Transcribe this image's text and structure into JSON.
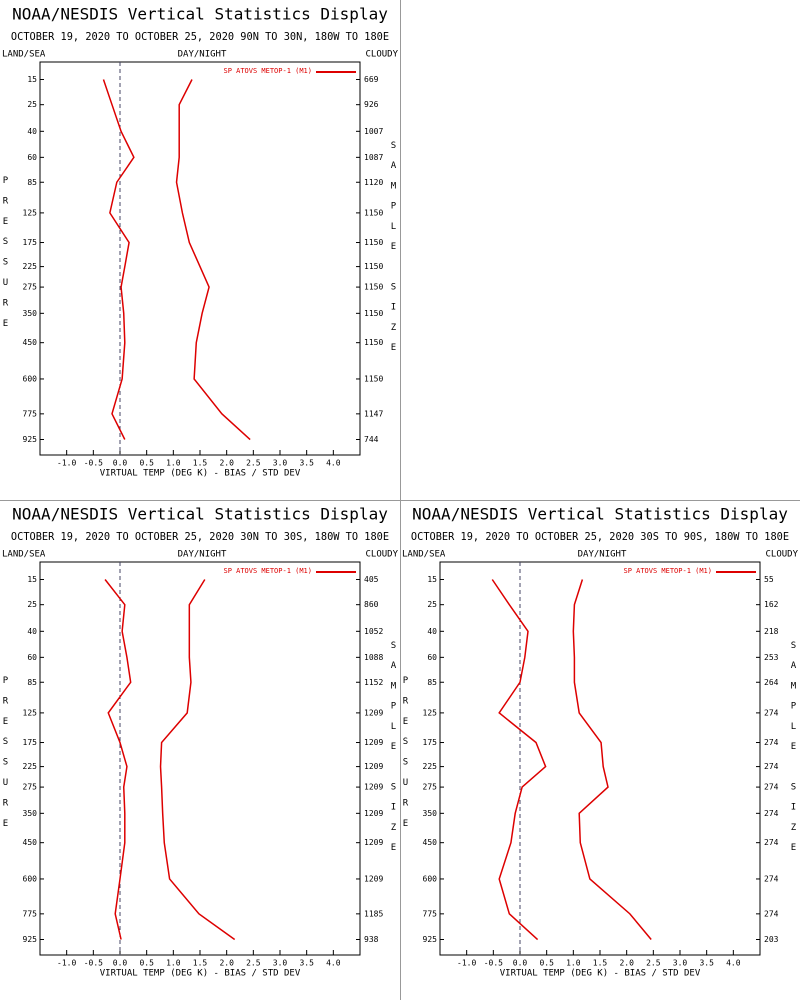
{
  "chart_data": [
    {
      "type": "line",
      "title": "NOAA/NESDIS Vertical Statistics Display",
      "subtitle": "OCTOBER 19, 2020 TO OCTOBER 25, 2020 90N TO 30N, 180W TO 180E",
      "corner_labels": [
        "LAND/SEA",
        "DAY/NIGHT",
        "CLOUDY"
      ],
      "y_label": "PRESSURE",
      "y2_label": "SAMPLE SIZE",
      "x_label": "VIRTUAL TEMP (DEG K) - BIAS / STD DEV",
      "categories": [
        15,
        25,
        40,
        60,
        85,
        125,
        175,
        225,
        275,
        350,
        450,
        600,
        775,
        925
      ],
      "ylim": [
        10,
        1025
      ],
      "xlim": [
        -1.5,
        4.5
      ],
      "xticks": [
        {
          "value": -1,
          "label": "-1.0"
        },
        {
          "value": -0.5,
          "label": "-0.5"
        },
        {
          "value": 0,
          "label": "0.0"
        },
        {
          "value": 0.5,
          "label": "0.5"
        },
        {
          "value": 1,
          "label": "1.0"
        },
        {
          "value": 1.5,
          "label": "1.5"
        },
        {
          "value": 2,
          "label": "2.0"
        },
        {
          "value": 2.5,
          "label": "2.5"
        },
        {
          "value": 3,
          "label": "3.0"
        },
        {
          "value": 3.5,
          "label": "3.5"
        },
        {
          "value": 4,
          "label": "4.0"
        }
      ],
      "legend": "upper right",
      "series": [
        {
          "name": "SP ATOVS METOP-1 (M1)",
          "color": "#dd0000",
          "bias": [
            -0.31,
            -0.15,
            0.02,
            0.26,
            -0.06,
            -0.19,
            0.17,
            0.09,
            0.02,
            0.07,
            0.09,
            0.04,
            -0.15,
            0.09
          ],
          "std_dev": [
            1.35,
            1.11,
            1.11,
            1.11,
            1.06,
            1.17,
            1.3,
            1.5,
            1.67,
            1.54,
            1.43,
            1.39,
            1.91,
            2.44
          ]
        }
      ],
      "sample_size": [
        669,
        926,
        1007,
        1087,
        1120,
        1150,
        1150,
        1150,
        1150,
        1150,
        1150,
        1150,
        1147,
        744
      ]
    },
    {
      "type": "line",
      "title": "NOAA/NESDIS Vertical Statistics Display",
      "subtitle": "OCTOBER 19, 2020 TO OCTOBER 25, 2020 30N TO 30S, 180W TO 180E",
      "corner_labels": [
        "LAND/SEA",
        "DAY/NIGHT",
        "CLOUDY"
      ],
      "y_label": "PRESSURE",
      "y2_label": "SAMPLE SIZE",
      "x_label": "VIRTUAL TEMP (DEG K) - BIAS / STD DEV",
      "categories": [
        15,
        25,
        40,
        60,
        85,
        125,
        175,
        225,
        275,
        350,
        450,
        600,
        775,
        925
      ],
      "ylim": [
        10,
        1025
      ],
      "xlim": [
        -1.5,
        4.5
      ],
      "xticks": [
        {
          "value": -1,
          "label": "-1.0"
        },
        {
          "value": -0.5,
          "label": "-0.5"
        },
        {
          "value": 0,
          "label": "0.0"
        },
        {
          "value": 0.5,
          "label": "0.5"
        },
        {
          "value": 1,
          "label": "1.0"
        },
        {
          "value": 1.5,
          "label": "1.5"
        },
        {
          "value": 2,
          "label": "2.0"
        },
        {
          "value": 2.5,
          "label": "2.5"
        },
        {
          "value": 3,
          "label": "3.0"
        },
        {
          "value": 3.5,
          "label": "3.5"
        },
        {
          "value": 4,
          "label": "4.0"
        }
      ],
      "legend": "upper right",
      "series": [
        {
          "name": "SP ATOVS METOP-1 (M1)",
          "color": "#dd0000",
          "bias": [
            -0.28,
            0.09,
            0.04,
            0.13,
            0.2,
            -0.22,
            0,
            0.13,
            0.07,
            0.09,
            0.09,
            0,
            -0.09,
            0.02
          ],
          "std_dev": [
            1.59,
            1.3,
            1.3,
            1.3,
            1.33,
            1.26,
            0.78,
            0.76,
            0.78,
            0.8,
            0.83,
            0.93,
            1.48,
            2.15
          ]
        }
      ],
      "sample_size": [
        405,
        860,
        1052,
        1088,
        1152,
        1209,
        1209,
        1209,
        1209,
        1209,
        1209,
        1209,
        1185,
        938
      ]
    },
    {
      "type": "line",
      "title": "NOAA/NESDIS Vertical Statistics Display",
      "subtitle": "OCTOBER 19, 2020 TO OCTOBER 25, 2020 30S TO 90S, 180W TO 180E",
      "corner_labels": [
        "LAND/SEA",
        "DAY/NIGHT",
        "CLOUDY"
      ],
      "y_label": "PRESSURE",
      "y2_label": "SAMPLE SIZE",
      "x_label": "VIRTUAL TEMP (DEG K) - BIAS / STD DEV",
      "categories": [
        15,
        25,
        40,
        60,
        85,
        125,
        175,
        225,
        275,
        350,
        450,
        600,
        775,
        925
      ],
      "ylim": [
        10,
        1025
      ],
      "xlim": [
        -1.5,
        4.5
      ],
      "xticks": [
        {
          "value": -1,
          "label": "-1.0"
        },
        {
          "value": -0.5,
          "label": "-0.5"
        },
        {
          "value": 0,
          "label": "0.0"
        },
        {
          "value": 0.5,
          "label": "0.5"
        },
        {
          "value": 1,
          "label": "1.0"
        },
        {
          "value": 1.5,
          "label": "1.5"
        },
        {
          "value": 2,
          "label": "2.0"
        },
        {
          "value": 2.5,
          "label": "2.5"
        },
        {
          "value": 3,
          "label": "3.0"
        },
        {
          "value": 3.5,
          "label": "3.5"
        },
        {
          "value": 4,
          "label": "4.0"
        }
      ],
      "legend": "upper right",
      "series": [
        {
          "name": "SP ATOVS METOP-1 (M1)",
          "color": "#dd0000",
          "bias": [
            -0.52,
            -0.2,
            0.15,
            0.09,
            0,
            -0.39,
            0.3,
            0.48,
            0.04,
            -0.09,
            -0.17,
            -0.39,
            -0.2,
            0.33
          ],
          "std_dev": [
            1.17,
            1.02,
            1,
            1.02,
            1.02,
            1.11,
            1.52,
            1.56,
            1.65,
            1.11,
            1.13,
            1.31,
            2.06,
            2.46
          ]
        }
      ],
      "sample_size": [
        55,
        162,
        218,
        253,
        264,
        274,
        274,
        274,
        274,
        274,
        274,
        274,
        274,
        203
      ]
    }
  ]
}
